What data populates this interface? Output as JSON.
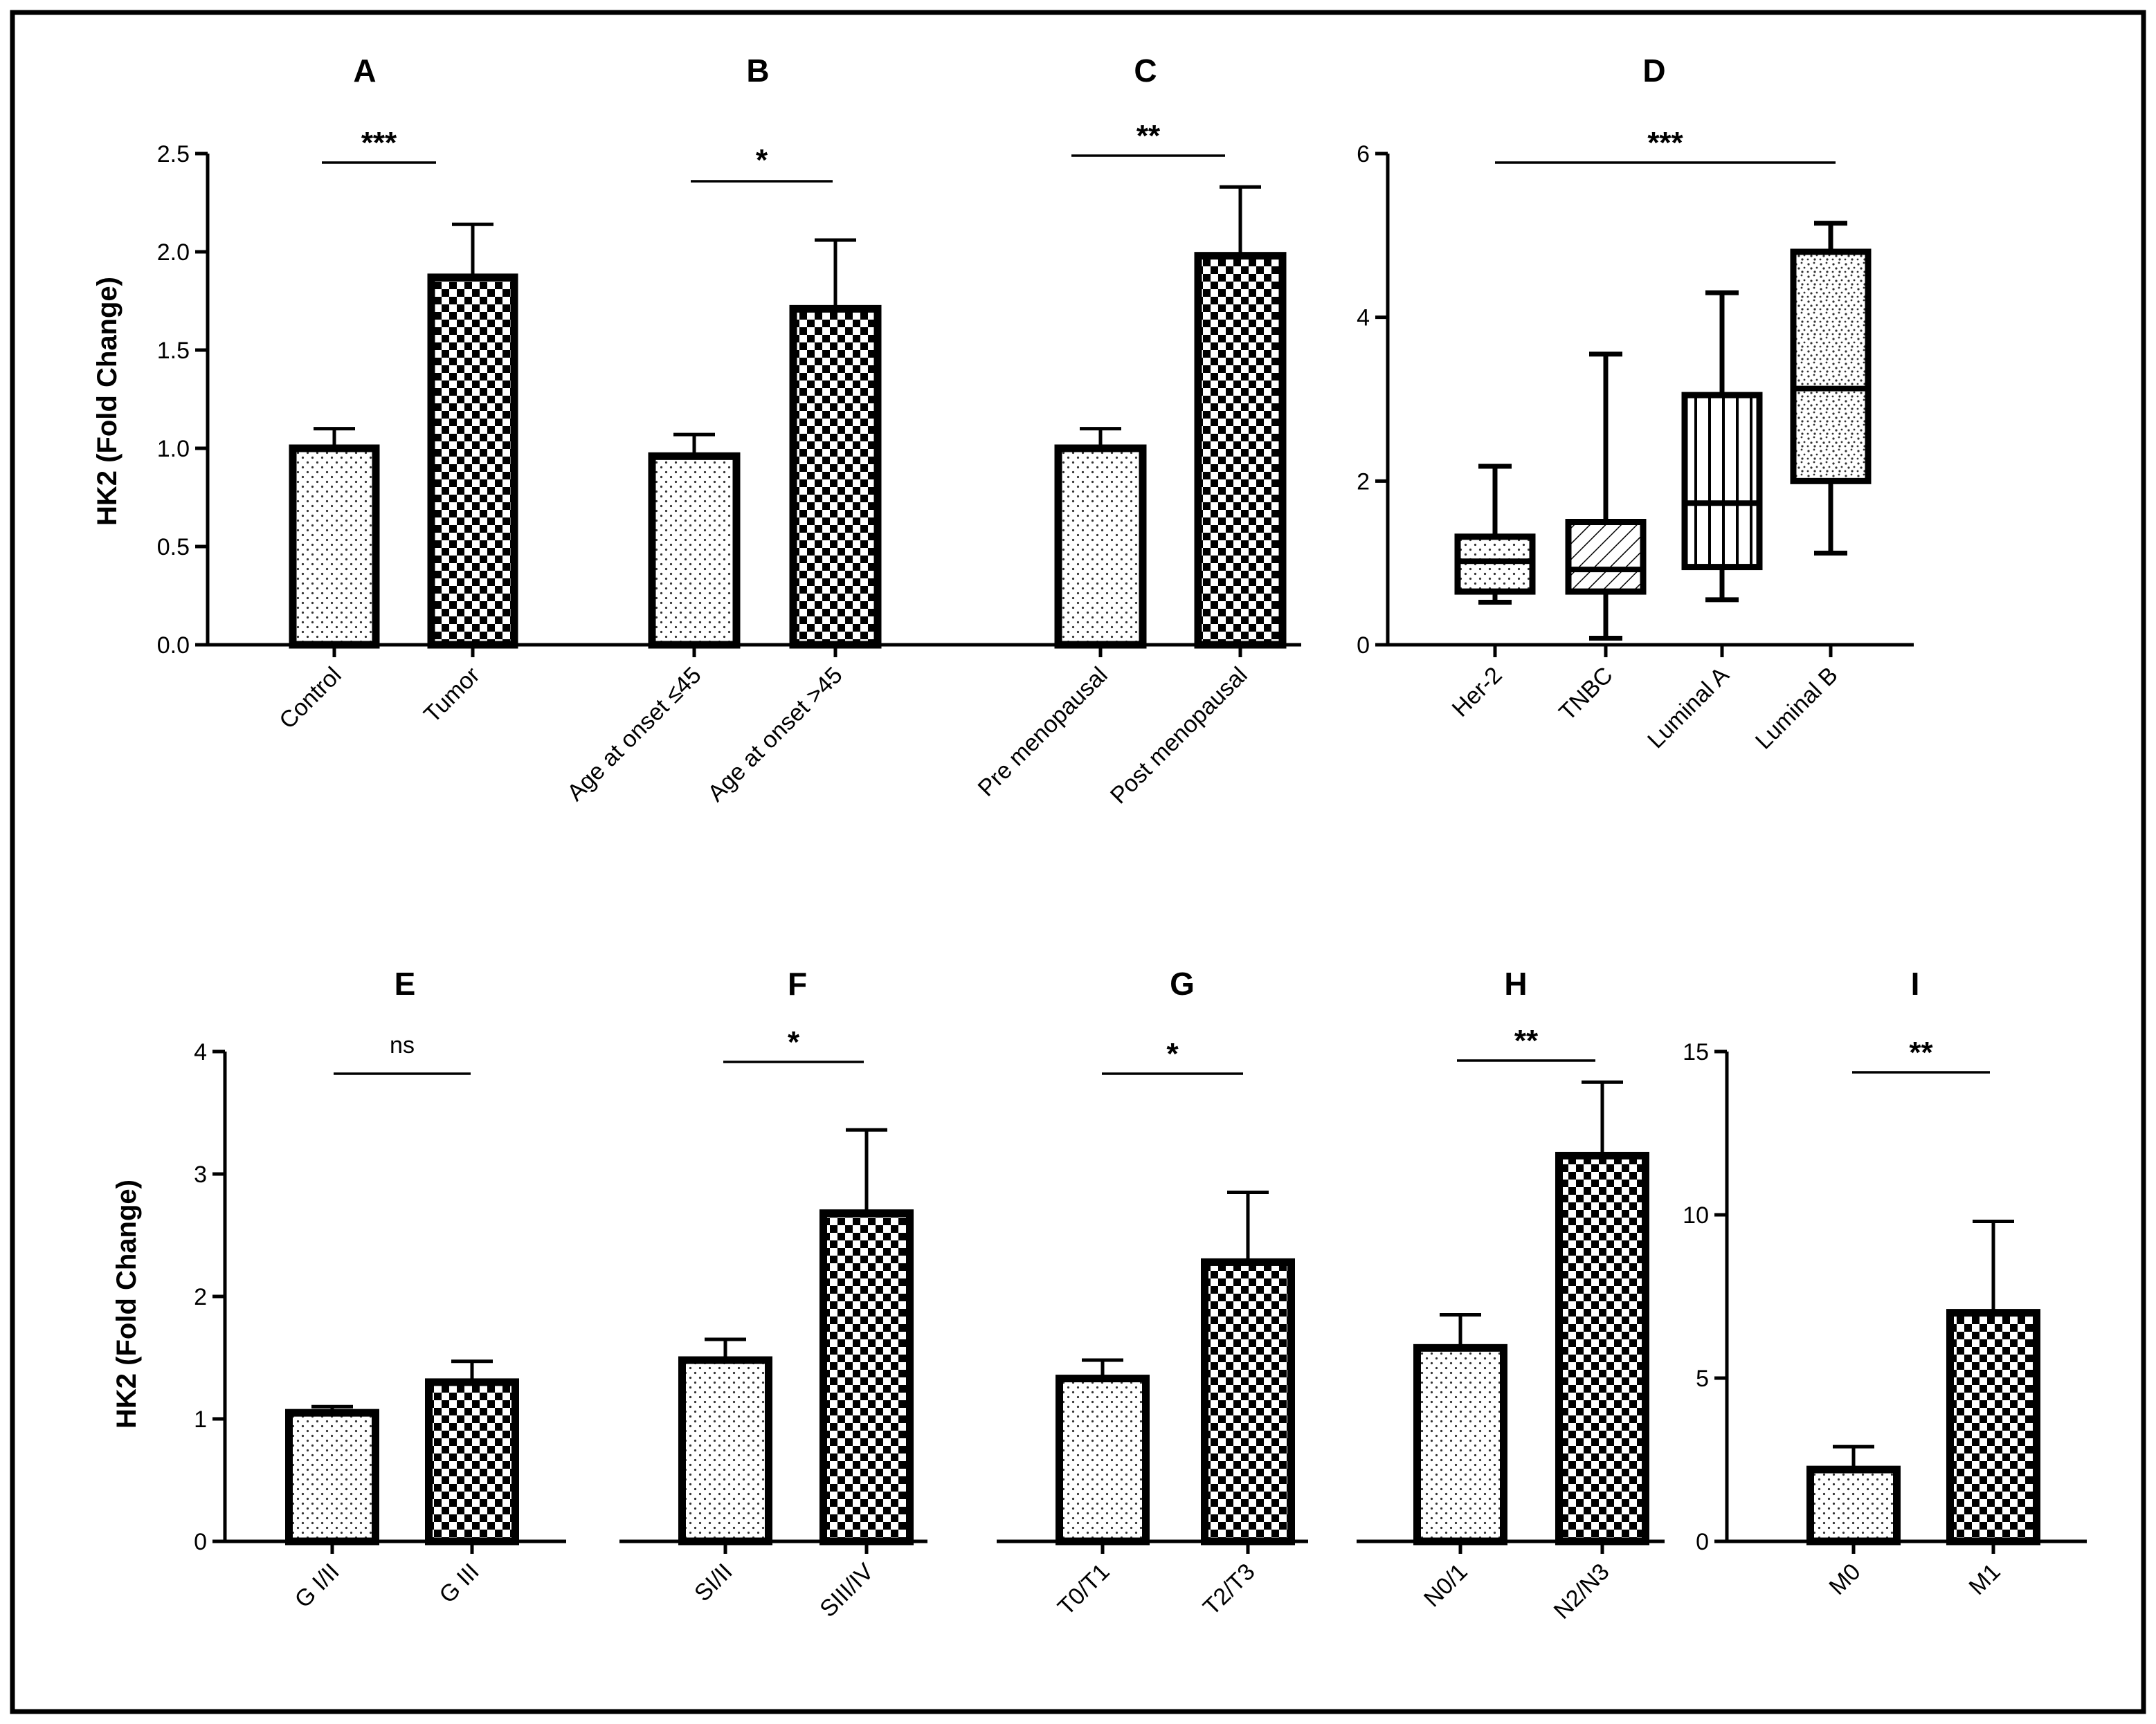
{
  "figure": {
    "y_axis_label": "HK2 (Fold Change)"
  },
  "chart_data": [
    {
      "panel": "A",
      "type": "bar",
      "categories": [
        "Control",
        "Tumor"
      ],
      "values": [
        1.0,
        1.87
      ],
      "errors": [
        0.1,
        0.27
      ],
      "ylim": [
        0,
        2.5
      ],
      "yticks": [
        "0.0",
        "0.5",
        "1.0",
        "1.5",
        "2.0",
        "2.5"
      ],
      "significance": "***",
      "patterns": [
        "dots",
        "checker"
      ]
    },
    {
      "panel": "B",
      "type": "bar",
      "categories": [
        "Age at onset ≤45",
        "Age at onset >45"
      ],
      "values": [
        0.96,
        1.71
      ],
      "errors": [
        0.11,
        0.35
      ],
      "ylim": [
        0,
        2.5
      ],
      "yticks": [
        "0.0",
        "0.5",
        "1.0",
        "1.5",
        "2.0",
        "2.5"
      ],
      "significance": "*",
      "patterns": [
        "dots",
        "checker"
      ]
    },
    {
      "panel": "C",
      "type": "bar",
      "categories": [
        "Pre menopausal",
        "Post menopausal"
      ],
      "values": [
        1.0,
        1.98
      ],
      "errors": [
        0.1,
        0.35
      ],
      "ylim": [
        0,
        2.5
      ],
      "yticks": [
        "0.0",
        "0.5",
        "1.0",
        "1.5",
        "2.0",
        "2.5"
      ],
      "significance": "**",
      "patterns": [
        "dots",
        "checker"
      ]
    },
    {
      "panel": "D",
      "type": "box",
      "categories": [
        "Her-2",
        "TNBC",
        "Luminal A",
        "Luminal B"
      ],
      "boxes": [
        {
          "min": 0.52,
          "q1": 0.65,
          "median": 1.02,
          "q3": 1.32,
          "max": 2.18
        },
        {
          "min": 0.08,
          "q1": 0.65,
          "median": 0.92,
          "q3": 1.5,
          "max": 3.55
        },
        {
          "min": 0.55,
          "q1": 0.95,
          "median": 1.73,
          "q3": 3.05,
          "max": 4.3
        },
        {
          "min": 1.12,
          "q1": 2.0,
          "median": 3.13,
          "q3": 4.8,
          "max": 5.15
        }
      ],
      "ylim": [
        0,
        6
      ],
      "yticks": [
        "0",
        "2",
        "4",
        "6"
      ],
      "significance": "***",
      "patterns": [
        "dots",
        "hatch",
        "vlines",
        "speckle"
      ]
    },
    {
      "panel": "E",
      "type": "bar",
      "categories": [
        "G I/II",
        "G III"
      ],
      "values": [
        1.05,
        1.3
      ],
      "errors": [
        0.05,
        0.17
      ],
      "ylim": [
        0,
        4
      ],
      "yticks": [
        "0",
        "1",
        "2",
        "3",
        "4"
      ],
      "significance": "ns",
      "patterns": [
        "dots",
        "checker"
      ]
    },
    {
      "panel": "F",
      "type": "bar",
      "categories": [
        "SI/II",
        "SIII/IV"
      ],
      "values": [
        1.48,
        2.68
      ],
      "errors": [
        0.17,
        0.68
      ],
      "ylim": [
        0,
        4
      ],
      "yticks": [
        "0",
        "1",
        "2",
        "3",
        "4"
      ],
      "significance": "*",
      "patterns": [
        "dots",
        "checker"
      ]
    },
    {
      "panel": "G",
      "type": "bar",
      "categories": [
        "T0/T1",
        "T2/T3"
      ],
      "values": [
        1.33,
        2.28
      ],
      "errors": [
        0.15,
        0.57
      ],
      "ylim": [
        0,
        4
      ],
      "yticks": [
        "0",
        "1",
        "2",
        "3",
        "4"
      ],
      "significance": "*",
      "patterns": [
        "dots",
        "checker"
      ]
    },
    {
      "panel": "H",
      "type": "bar",
      "categories": [
        "N0/1",
        "N2/N3"
      ],
      "values": [
        1.58,
        3.15
      ],
      "errors": [
        0.27,
        0.6
      ],
      "ylim": [
        0,
        4
      ],
      "yticks": [
        "0",
        "1",
        "2",
        "3",
        "4"
      ],
      "significance": "**",
      "patterns": [
        "dots",
        "checker"
      ]
    },
    {
      "panel": "I",
      "type": "bar",
      "categories": [
        "M0",
        "M1"
      ],
      "values": [
        2.2,
        7.0
      ],
      "errors": [
        0.7,
        2.8
      ],
      "ylim": [
        0,
        15
      ],
      "yticks": [
        "0",
        "5",
        "10",
        "15"
      ],
      "significance": "**",
      "patterns": [
        "dots",
        "checker"
      ]
    }
  ]
}
